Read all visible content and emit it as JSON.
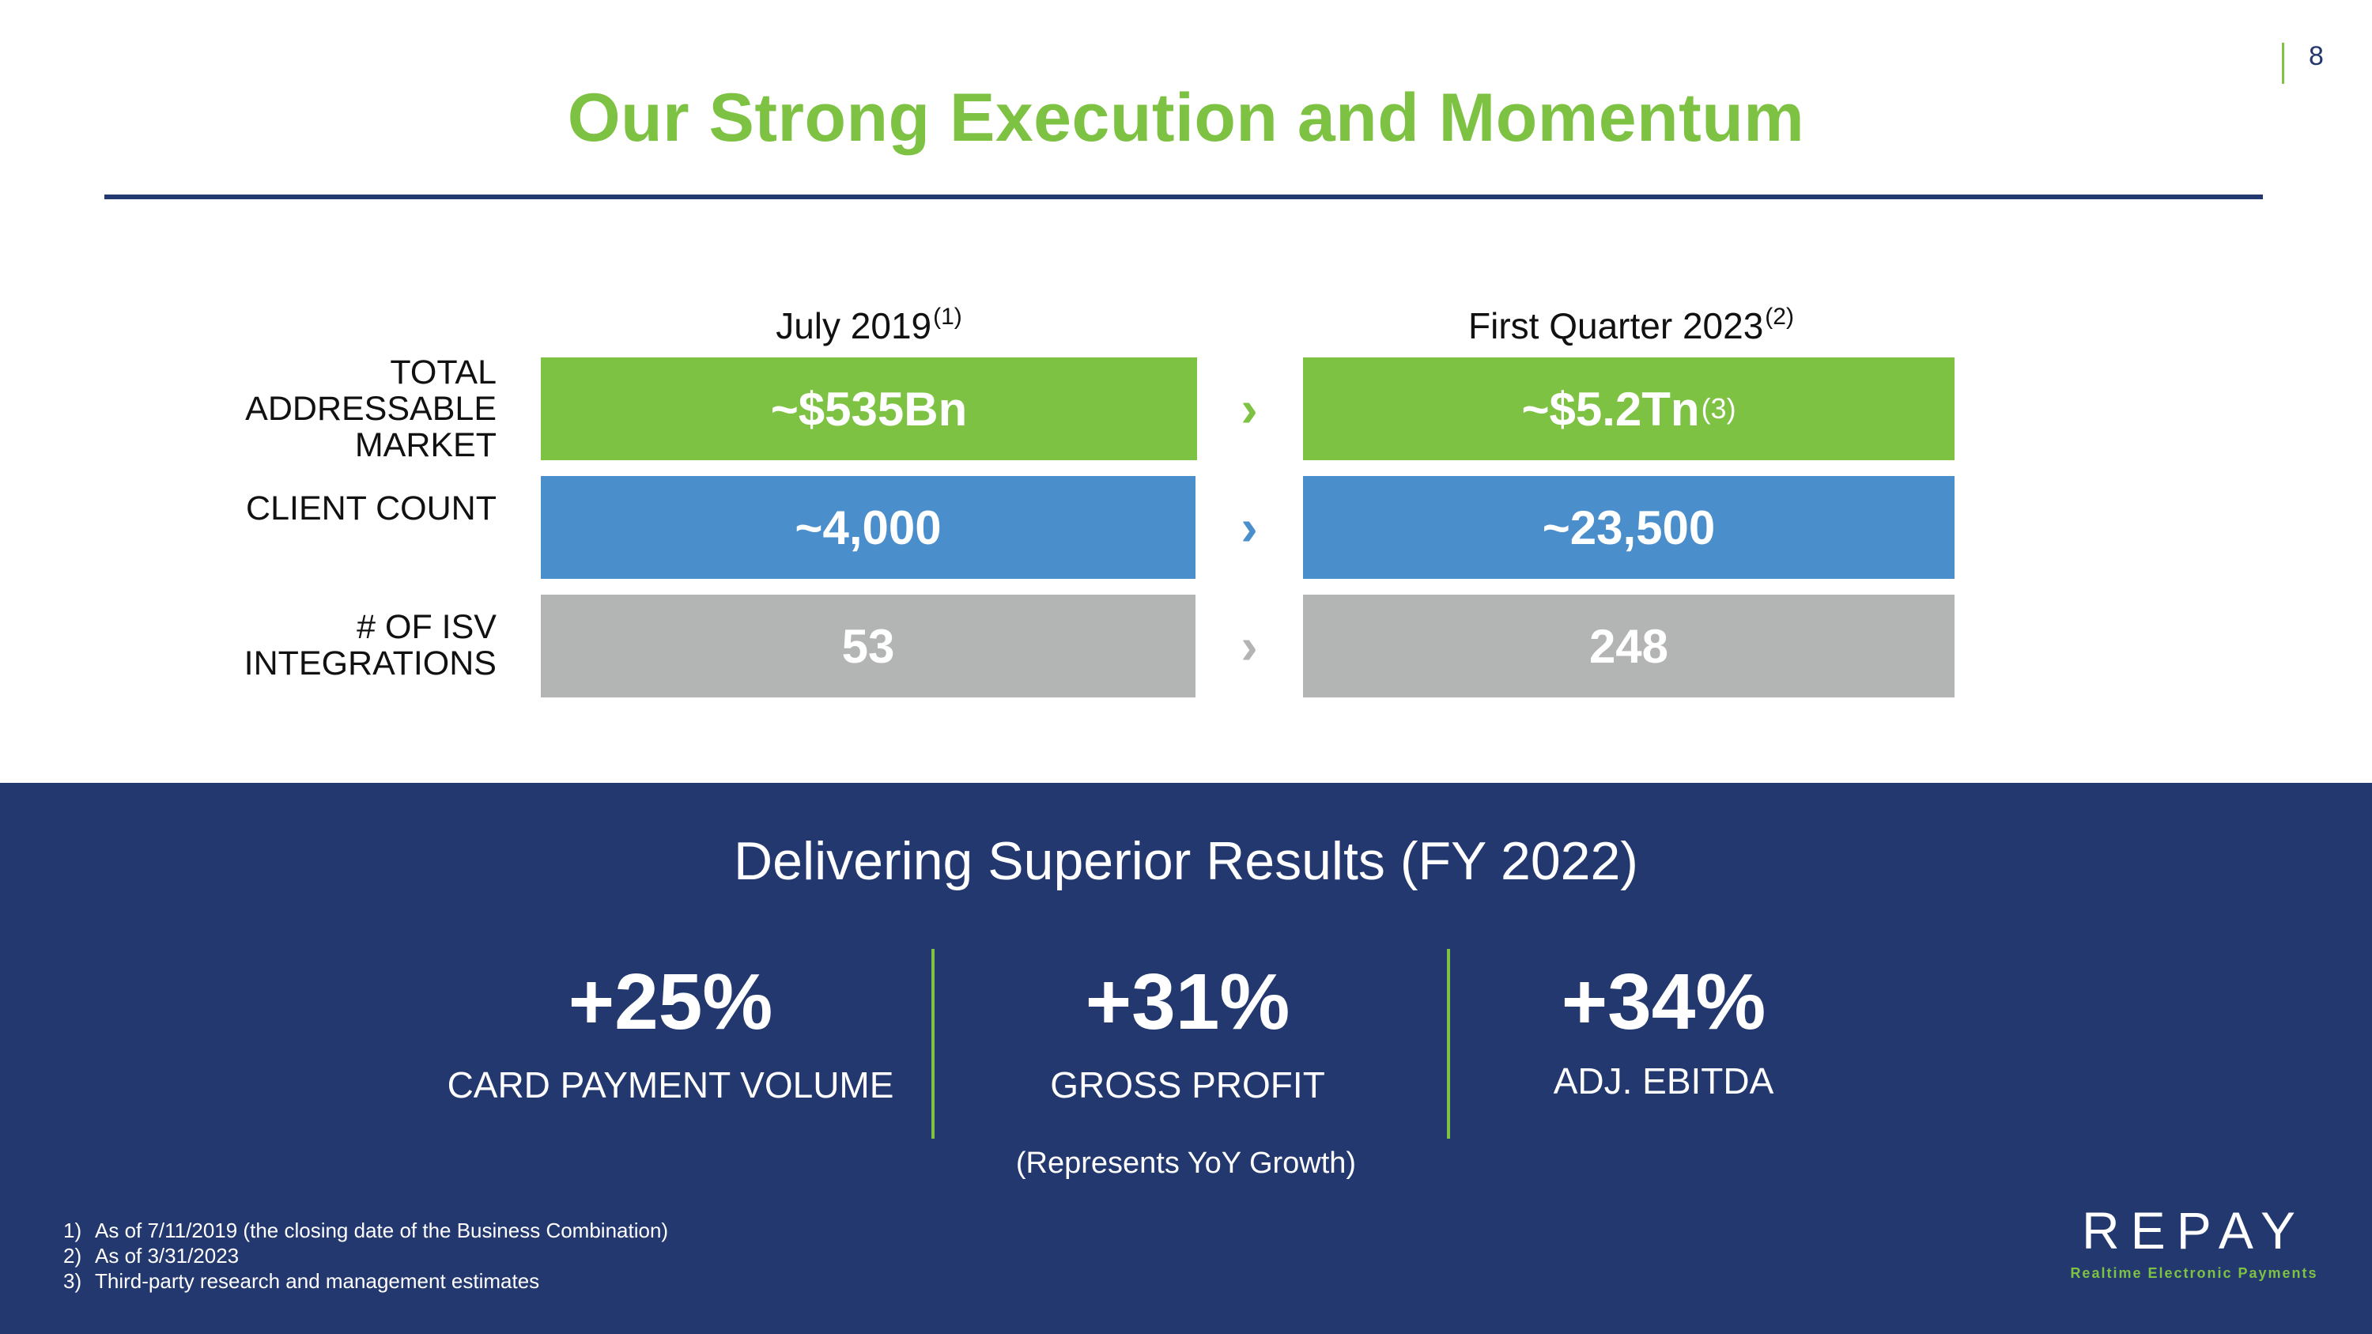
{
  "page_number": "8",
  "title": "Our Strong Execution and Momentum",
  "columns": [
    {
      "label": "July 2019",
      "note": "(1)"
    },
    {
      "label": "First Quarter 2023",
      "note": "(2)"
    }
  ],
  "rows": [
    {
      "label": "TOTAL ADDRESSABLE MARKET",
      "left": "~$535Bn",
      "right": "~$5.2Tn",
      "right_note": "(3)",
      "color": "#7dc242"
    },
    {
      "label": "CLIENT COUNT",
      "left": "~4,000",
      "right": "~23,500",
      "right_note": "",
      "color": "#4a8fcc"
    },
    {
      "label": "# OF ISV INTEGRATIONS",
      "left": "53",
      "right": "248",
      "right_note": "",
      "color": "#b3b4b4"
    }
  ],
  "arrow_glyph": "›",
  "results": {
    "title": "Delivering Superior Results (FY 2022)",
    "metrics": [
      {
        "value": "+25%",
        "label": "CARD PAYMENT VOLUME"
      },
      {
        "value": "+31%",
        "label": "GROSS PROFIT"
      },
      {
        "value": "+34%",
        "label": "ADJ. EBITDA"
      }
    ],
    "note": "(Represents YoY Growth)"
  },
  "footnotes": [
    {
      "n": "1)",
      "text": "As of 7/11/2019 (the closing date of the Business Combination)"
    },
    {
      "n": "2)",
      "text": "As of 3/31/2023"
    },
    {
      "n": "3)",
      "text": "Third-party research and management estimates"
    }
  ],
  "logo": {
    "word": "REPAY",
    "tagline": "Realtime Electronic Payments"
  },
  "colors": {
    "green": "#7dc242",
    "navy": "#243870",
    "blue": "#4a8fcc",
    "gray": "#b3b4b4"
  }
}
